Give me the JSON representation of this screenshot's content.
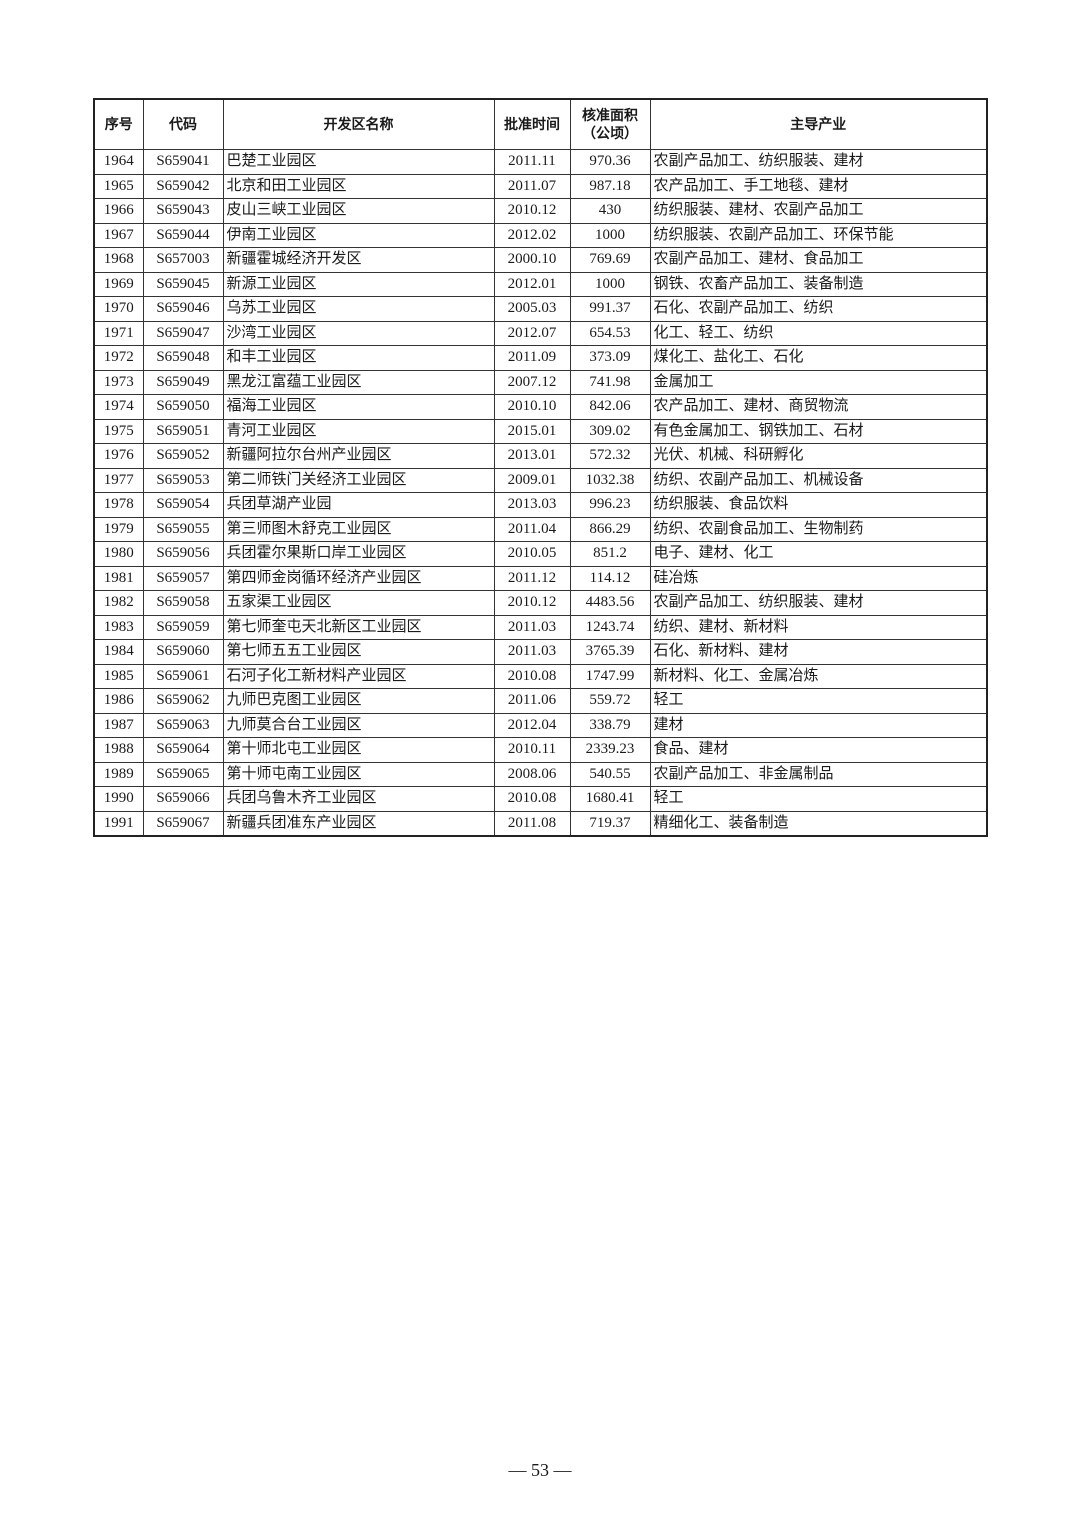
{
  "table": {
    "headers": [
      "序号",
      "代码",
      "开发区名称",
      "批准时间",
      "核准面积（公顷）",
      "主导产业"
    ],
    "rows": [
      [
        "1964",
        "S659041",
        "巴楚工业园区",
        "2011.11",
        "970.36",
        "农副产品加工、纺织服装、建材"
      ],
      [
        "1965",
        "S659042",
        "北京和田工业园区",
        "2011.07",
        "987.18",
        "农产品加工、手工地毯、建材"
      ],
      [
        "1966",
        "S659043",
        "皮山三峡工业园区",
        "2010.12",
        "430",
        "纺织服装、建材、农副产品加工"
      ],
      [
        "1967",
        "S659044",
        "伊南工业园区",
        "2012.02",
        "1000",
        "纺织服装、农副产品加工、环保节能"
      ],
      [
        "1968",
        "S657003",
        "新疆霍城经济开发区",
        "2000.10",
        "769.69",
        "农副产品加工、建材、食品加工"
      ],
      [
        "1969",
        "S659045",
        "新源工业园区",
        "2012.01",
        "1000",
        "钢铁、农畜产品加工、装备制造"
      ],
      [
        "1970",
        "S659046",
        "乌苏工业园区",
        "2005.03",
        "991.37",
        "石化、农副产品加工、纺织"
      ],
      [
        "1971",
        "S659047",
        "沙湾工业园区",
        "2012.07",
        "654.53",
        "化工、轻工、纺织"
      ],
      [
        "1972",
        "S659048",
        "和丰工业园区",
        "2011.09",
        "373.09",
        "煤化工、盐化工、石化"
      ],
      [
        "1973",
        "S659049",
        "黑龙江富蕴工业园区",
        "2007.12",
        "741.98",
        "金属加工"
      ],
      [
        "1974",
        "S659050",
        "福海工业园区",
        "2010.10",
        "842.06",
        "农产品加工、建材、商贸物流"
      ],
      [
        "1975",
        "S659051",
        "青河工业园区",
        "2015.01",
        "309.02",
        "有色金属加工、钢铁加工、石材"
      ],
      [
        "1976",
        "S659052",
        "新疆阿拉尔台州产业园区",
        "2013.01",
        "572.32",
        "光伏、机械、科研孵化"
      ],
      [
        "1977",
        "S659053",
        "第二师铁门关经济工业园区",
        "2009.01",
        "1032.38",
        "纺织、农副产品加工、机械设备"
      ],
      [
        "1978",
        "S659054",
        "兵团草湖产业园",
        "2013.03",
        "996.23",
        "纺织服装、食品饮料"
      ],
      [
        "1979",
        "S659055",
        "第三师图木舒克工业园区",
        "2011.04",
        "866.29",
        "纺织、农副食品加工、生物制药"
      ],
      [
        "1980",
        "S659056",
        "兵团霍尔果斯口岸工业园区",
        "2010.05",
        "851.2",
        "电子、建材、化工"
      ],
      [
        "1981",
        "S659057",
        "第四师金岗循环经济产业园区",
        "2011.12",
        "114.12",
        "硅冶炼"
      ],
      [
        "1982",
        "S659058",
        "五家渠工业园区",
        "2010.12",
        "4483.56",
        "农副产品加工、纺织服装、建材"
      ],
      [
        "1983",
        "S659059",
        "第七师奎屯天北新区工业园区",
        "2011.03",
        "1243.74",
        "纺织、建材、新材料"
      ],
      [
        "1984",
        "S659060",
        "第七师五五工业园区",
        "2011.03",
        "3765.39",
        "石化、新材料、建材"
      ],
      [
        "1985",
        "S659061",
        "石河子化工新材料产业园区",
        "2010.08",
        "1747.99",
        "新材料、化工、金属冶炼"
      ],
      [
        "1986",
        "S659062",
        "九师巴克图工业园区",
        "2011.06",
        "559.72",
        "轻工"
      ],
      [
        "1987",
        "S659063",
        "九师莫合台工业园区",
        "2012.04",
        "338.79",
        "建材"
      ],
      [
        "1988",
        "S659064",
        "第十师北屯工业园区",
        "2010.11",
        "2339.23",
        "食品、建材"
      ],
      [
        "1989",
        "S659065",
        "第十师屯南工业园区",
        "2008.06",
        "540.55",
        "农副产品加工、非金属制品"
      ],
      [
        "1990",
        "S659066",
        "兵团乌鲁木齐工业园区",
        "2010.08",
        "1680.41",
        "轻工"
      ],
      [
        "1991",
        "S659067",
        "新疆兵团准东产业园区",
        "2011.08",
        "719.37",
        "精细化工、装备制造"
      ]
    ]
  },
  "footer": {
    "page_number": "— 53 —"
  }
}
